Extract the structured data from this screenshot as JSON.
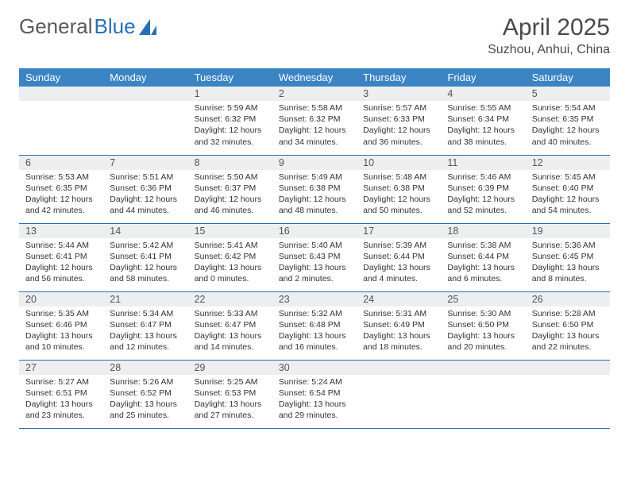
{
  "logo": {
    "text1": "General",
    "text2": "Blue"
  },
  "header": {
    "month_title": "April 2025",
    "location": "Suzhou, Anhui, China"
  },
  "colors": {
    "header_bg": "#3b84c4",
    "header_text": "#ffffff",
    "daynum_bg": "#eceeef",
    "rule": "#2a6fb5",
    "logo_gray": "#5a5a5a",
    "logo_blue": "#2a6fb5",
    "triangle": "#2a6fb5"
  },
  "days_of_week": [
    "Sunday",
    "Monday",
    "Tuesday",
    "Wednesday",
    "Thursday",
    "Friday",
    "Saturday"
  ],
  "weeks": [
    [
      null,
      null,
      {
        "n": "1",
        "sunrise": "Sunrise: 5:59 AM",
        "sunset": "Sunset: 6:32 PM",
        "daylight": "Daylight: 12 hours and 32 minutes."
      },
      {
        "n": "2",
        "sunrise": "Sunrise: 5:58 AM",
        "sunset": "Sunset: 6:32 PM",
        "daylight": "Daylight: 12 hours and 34 minutes."
      },
      {
        "n": "3",
        "sunrise": "Sunrise: 5:57 AM",
        "sunset": "Sunset: 6:33 PM",
        "daylight": "Daylight: 12 hours and 36 minutes."
      },
      {
        "n": "4",
        "sunrise": "Sunrise: 5:55 AM",
        "sunset": "Sunset: 6:34 PM",
        "daylight": "Daylight: 12 hours and 38 minutes."
      },
      {
        "n": "5",
        "sunrise": "Sunrise: 5:54 AM",
        "sunset": "Sunset: 6:35 PM",
        "daylight": "Daylight: 12 hours and 40 minutes."
      }
    ],
    [
      {
        "n": "6",
        "sunrise": "Sunrise: 5:53 AM",
        "sunset": "Sunset: 6:35 PM",
        "daylight": "Daylight: 12 hours and 42 minutes."
      },
      {
        "n": "7",
        "sunrise": "Sunrise: 5:51 AM",
        "sunset": "Sunset: 6:36 PM",
        "daylight": "Daylight: 12 hours and 44 minutes."
      },
      {
        "n": "8",
        "sunrise": "Sunrise: 5:50 AM",
        "sunset": "Sunset: 6:37 PM",
        "daylight": "Daylight: 12 hours and 46 minutes."
      },
      {
        "n": "9",
        "sunrise": "Sunrise: 5:49 AM",
        "sunset": "Sunset: 6:38 PM",
        "daylight": "Daylight: 12 hours and 48 minutes."
      },
      {
        "n": "10",
        "sunrise": "Sunrise: 5:48 AM",
        "sunset": "Sunset: 6:38 PM",
        "daylight": "Daylight: 12 hours and 50 minutes."
      },
      {
        "n": "11",
        "sunrise": "Sunrise: 5:46 AM",
        "sunset": "Sunset: 6:39 PM",
        "daylight": "Daylight: 12 hours and 52 minutes."
      },
      {
        "n": "12",
        "sunrise": "Sunrise: 5:45 AM",
        "sunset": "Sunset: 6:40 PM",
        "daylight": "Daylight: 12 hours and 54 minutes."
      }
    ],
    [
      {
        "n": "13",
        "sunrise": "Sunrise: 5:44 AM",
        "sunset": "Sunset: 6:41 PM",
        "daylight": "Daylight: 12 hours and 56 minutes."
      },
      {
        "n": "14",
        "sunrise": "Sunrise: 5:42 AM",
        "sunset": "Sunset: 6:41 PM",
        "daylight": "Daylight: 12 hours and 58 minutes."
      },
      {
        "n": "15",
        "sunrise": "Sunrise: 5:41 AM",
        "sunset": "Sunset: 6:42 PM",
        "daylight": "Daylight: 13 hours and 0 minutes."
      },
      {
        "n": "16",
        "sunrise": "Sunrise: 5:40 AM",
        "sunset": "Sunset: 6:43 PM",
        "daylight": "Daylight: 13 hours and 2 minutes."
      },
      {
        "n": "17",
        "sunrise": "Sunrise: 5:39 AM",
        "sunset": "Sunset: 6:44 PM",
        "daylight": "Daylight: 13 hours and 4 minutes."
      },
      {
        "n": "18",
        "sunrise": "Sunrise: 5:38 AM",
        "sunset": "Sunset: 6:44 PM",
        "daylight": "Daylight: 13 hours and 6 minutes."
      },
      {
        "n": "19",
        "sunrise": "Sunrise: 5:36 AM",
        "sunset": "Sunset: 6:45 PM",
        "daylight": "Daylight: 13 hours and 8 minutes."
      }
    ],
    [
      {
        "n": "20",
        "sunrise": "Sunrise: 5:35 AM",
        "sunset": "Sunset: 6:46 PM",
        "daylight": "Daylight: 13 hours and 10 minutes."
      },
      {
        "n": "21",
        "sunrise": "Sunrise: 5:34 AM",
        "sunset": "Sunset: 6:47 PM",
        "daylight": "Daylight: 13 hours and 12 minutes."
      },
      {
        "n": "22",
        "sunrise": "Sunrise: 5:33 AM",
        "sunset": "Sunset: 6:47 PM",
        "daylight": "Daylight: 13 hours and 14 minutes."
      },
      {
        "n": "23",
        "sunrise": "Sunrise: 5:32 AM",
        "sunset": "Sunset: 6:48 PM",
        "daylight": "Daylight: 13 hours and 16 minutes."
      },
      {
        "n": "24",
        "sunrise": "Sunrise: 5:31 AM",
        "sunset": "Sunset: 6:49 PM",
        "daylight": "Daylight: 13 hours and 18 minutes."
      },
      {
        "n": "25",
        "sunrise": "Sunrise: 5:30 AM",
        "sunset": "Sunset: 6:50 PM",
        "daylight": "Daylight: 13 hours and 20 minutes."
      },
      {
        "n": "26",
        "sunrise": "Sunrise: 5:28 AM",
        "sunset": "Sunset: 6:50 PM",
        "daylight": "Daylight: 13 hours and 22 minutes."
      }
    ],
    [
      {
        "n": "27",
        "sunrise": "Sunrise: 5:27 AM",
        "sunset": "Sunset: 6:51 PM",
        "daylight": "Daylight: 13 hours and 23 minutes."
      },
      {
        "n": "28",
        "sunrise": "Sunrise: 5:26 AM",
        "sunset": "Sunset: 6:52 PM",
        "daylight": "Daylight: 13 hours and 25 minutes."
      },
      {
        "n": "29",
        "sunrise": "Sunrise: 5:25 AM",
        "sunset": "Sunset: 6:53 PM",
        "daylight": "Daylight: 13 hours and 27 minutes."
      },
      {
        "n": "30",
        "sunrise": "Sunrise: 5:24 AM",
        "sunset": "Sunset: 6:54 PM",
        "daylight": "Daylight: 13 hours and 29 minutes."
      },
      null,
      null,
      null
    ]
  ]
}
